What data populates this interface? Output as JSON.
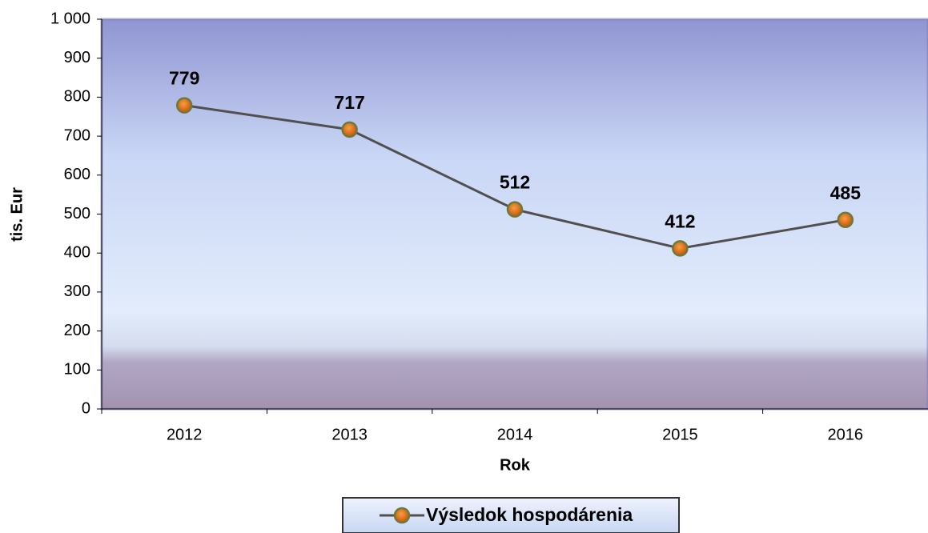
{
  "chart_data": {
    "type": "line",
    "categories": [
      "2012",
      "2013",
      "2014",
      "2015",
      "2016"
    ],
    "series": [
      {
        "name": "Výsledok hospodárenia",
        "color": "#505050",
        "marker_color": "#e8731a",
        "values": [
          779,
          717,
          512,
          412,
          485
        ]
      }
    ],
    "ylim": [
      0,
      1000
    ],
    "yticks": [
      0,
      100,
      200,
      300,
      400,
      500,
      600,
      700,
      800,
      900,
      {
        "value": 1000,
        "label": "1 000"
      }
    ],
    "y_label": "tis. Eur",
    "x_label": "Rok",
    "legend": "bottom"
  }
}
